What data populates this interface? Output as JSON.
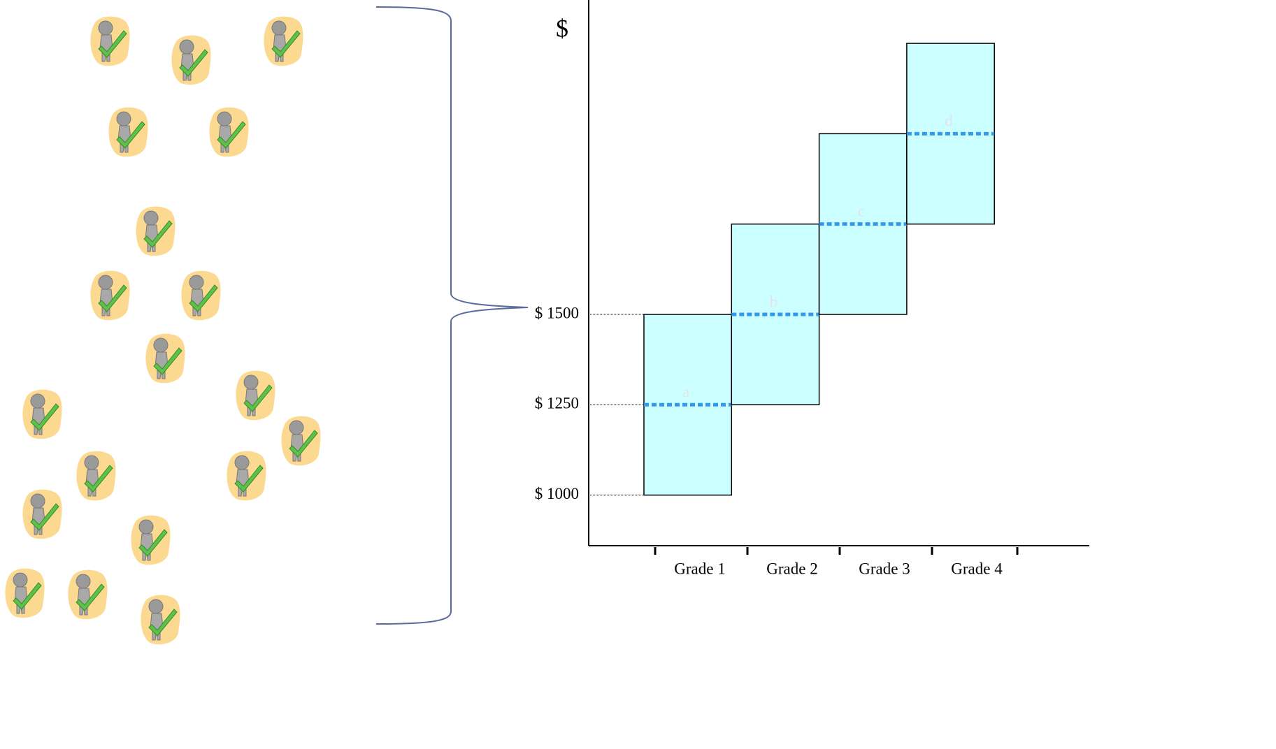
{
  "chart_data": {
    "type": "range",
    "ylabel": "$",
    "categories": [
      "Grade 1",
      "Grade 2",
      "Grade 3",
      "Grade 4"
    ],
    "low": [
      1000,
      1250,
      1500,
      1750
    ],
    "high": [
      1500,
      1750,
      2000,
      2250
    ],
    "mid": [
      1250,
      1500,
      1750,
      2000
    ],
    "mid_labels": [
      "a",
      "b",
      "c",
      "d"
    ],
    "color": "#ccffff",
    "mid_color": "#3399ee",
    "ylim": [
      860,
      2370
    ],
    "yticks": [
      {
        "value": 1000,
        "label": "$ 1000"
      },
      {
        "value": 1250,
        "label": "$ 1250"
      },
      {
        "value": 1500,
        "label": "$ 1500"
      }
    ]
  }
}
